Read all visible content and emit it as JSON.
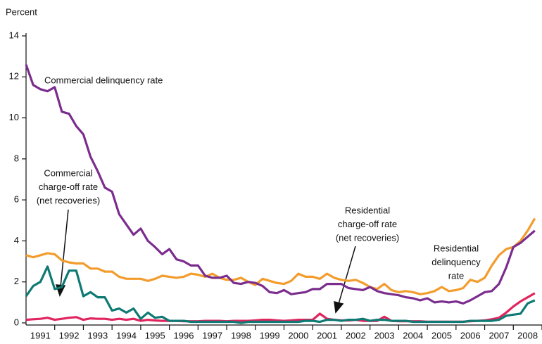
{
  "chart_data": {
    "type": "line",
    "ylabel": "Percent",
    "x": [
      1991,
      1991.25,
      1991.5,
      1991.75,
      1992,
      1992.25,
      1992.5,
      1992.75,
      1993,
      1993.25,
      1993.5,
      1993.75,
      1994,
      1994.25,
      1994.5,
      1994.75,
      1995,
      1995.25,
      1995.5,
      1995.75,
      1996,
      1996.25,
      1996.5,
      1996.75,
      1997,
      1997.25,
      1997.5,
      1997.75,
      1998,
      1998.25,
      1998.5,
      1998.75,
      1999,
      1999.25,
      1999.5,
      1999.75,
      2000,
      2000.25,
      2000.5,
      2000.75,
      2001,
      2001.25,
      2001.5,
      2001.75,
      2002,
      2002.25,
      2002.5,
      2002.75,
      2003,
      2003.25,
      2003.5,
      2003.75,
      2004,
      2004.25,
      2004.5,
      2004.75,
      2005,
      2005.25,
      2005.5,
      2005.75,
      2006,
      2006.25,
      2006.5,
      2006.75,
      2007,
      2007.25,
      2007.5,
      2007.75,
      2008,
      2008.25,
      2008.5,
      2008.75
    ],
    "xlim": [
      1991,
      2009
    ],
    "xticks": [
      {
        "value": 1991.5,
        "label": "1991"
      },
      {
        "value": 1992.5,
        "label": "1992"
      },
      {
        "value": 1993.5,
        "label": "1993"
      },
      {
        "value": 1994.5,
        "label": "1994"
      },
      {
        "value": 1995.5,
        "label": "1995"
      },
      {
        "value": 1996.5,
        "label": "1996"
      },
      {
        "value": 1997.5,
        "label": "1997"
      },
      {
        "value": 1998.5,
        "label": "1998"
      },
      {
        "value": 1999.5,
        "label": "1999"
      },
      {
        "value": 2000.5,
        "label": "2000"
      },
      {
        "value": 2001.5,
        "label": "2001"
      },
      {
        "value": 2002.5,
        "label": "2002"
      },
      {
        "value": 2003.5,
        "label": "2003"
      },
      {
        "value": 2004.5,
        "label": "2004"
      },
      {
        "value": 2005.5,
        "label": "2005"
      },
      {
        "value": 2006.5,
        "label": "2006"
      },
      {
        "value": 2007.5,
        "label": "2007"
      },
      {
        "value": 2008.5,
        "label": "2008"
      }
    ],
    "ylim": [
      0,
      14
    ],
    "yticks": [
      0,
      2,
      4,
      6,
      8,
      10,
      12,
      14
    ],
    "series": [
      {
        "name": "Commercial delinquency rate",
        "color": "#7b2d8e",
        "values": [
          12.6,
          11.6,
          11.4,
          11.3,
          11.5,
          10.3,
          10.2,
          9.6,
          9.2,
          8.1,
          7.4,
          6.6,
          6.4,
          5.3,
          4.8,
          4.3,
          4.6,
          4.0,
          3.7,
          3.35,
          3.6,
          3.1,
          3.0,
          2.8,
          2.8,
          2.3,
          2.2,
          2.2,
          2.3,
          1.95,
          1.9,
          2.0,
          1.95,
          1.8,
          1.5,
          1.45,
          1.6,
          1.4,
          1.45,
          1.5,
          1.65,
          1.65,
          1.9,
          1.9,
          1.9,
          1.7,
          1.65,
          1.6,
          1.75,
          1.55,
          1.45,
          1.4,
          1.35,
          1.25,
          1.2,
          1.1,
          1.2,
          1.0,
          1.05,
          1.0,
          1.05,
          0.95,
          1.1,
          1.3,
          1.5,
          1.55,
          1.9,
          2.7,
          3.7,
          3.9,
          4.2,
          4.5
        ]
      },
      {
        "name": "Residential delinquency rate",
        "color": "#f39c2c",
        "values": [
          3.3,
          3.2,
          3.3,
          3.4,
          3.35,
          3.05,
          2.95,
          2.9,
          2.9,
          2.65,
          2.65,
          2.5,
          2.5,
          2.25,
          2.15,
          2.15,
          2.15,
          2.05,
          2.15,
          2.3,
          2.25,
          2.2,
          2.25,
          2.4,
          2.35,
          2.25,
          2.4,
          2.2,
          2.1,
          2.1,
          2.2,
          2.0,
          1.85,
          2.15,
          2.05,
          1.95,
          1.9,
          2.05,
          2.4,
          2.25,
          2.25,
          2.15,
          2.4,
          2.2,
          2.1,
          2.05,
          2.1,
          1.95,
          1.75,
          1.65,
          1.9,
          1.6,
          1.5,
          1.55,
          1.5,
          1.4,
          1.45,
          1.55,
          1.75,
          1.55,
          1.6,
          1.7,
          2.1,
          2.0,
          2.2,
          2.8,
          3.3,
          3.6,
          3.7,
          4.0,
          4.5,
          5.1
        ]
      },
      {
        "name": "Commercial charge-off rate (net recoveries)",
        "color": "#0e7a73",
        "values": [
          1.3,
          1.8,
          2.0,
          2.75,
          1.65,
          1.75,
          2.55,
          2.55,
          1.3,
          1.5,
          1.25,
          1.25,
          0.6,
          0.7,
          0.5,
          0.7,
          0.2,
          0.5,
          0.25,
          0.3,
          0.1,
          0.1,
          0.1,
          0.05,
          0.05,
          0.05,
          0.05,
          0.05,
          0.05,
          0.05,
          0.0,
          0.05,
          0.05,
          0.05,
          0.05,
          0.05,
          0.05,
          0.05,
          0.05,
          0.1,
          0.1,
          0.05,
          0.15,
          0.15,
          0.1,
          0.15,
          0.15,
          0.2,
          0.1,
          0.15,
          0.15,
          0.1,
          0.1,
          0.1,
          0.05,
          0.05,
          0.05,
          0.05,
          0.05,
          0.05,
          0.05,
          0.05,
          0.1,
          0.1,
          0.1,
          0.1,
          0.15,
          0.35,
          0.4,
          0.45,
          0.95,
          1.1
        ]
      },
      {
        "name": "Residential charge-off rate (net recoveries)",
        "color": "#e0245e",
        "values": [
          0.15,
          0.18,
          0.2,
          0.25,
          0.15,
          0.2,
          0.25,
          0.28,
          0.15,
          0.22,
          0.2,
          0.2,
          0.15,
          0.2,
          0.15,
          0.2,
          0.1,
          0.15,
          0.12,
          0.1,
          0.1,
          0.1,
          0.08,
          0.08,
          0.08,
          0.1,
          0.1,
          0.1,
          0.08,
          0.1,
          0.1,
          0.1,
          0.12,
          0.15,
          0.15,
          0.12,
          0.1,
          0.12,
          0.15,
          0.15,
          0.15,
          0.45,
          0.2,
          0.15,
          0.12,
          0.12,
          0.15,
          0.1,
          0.1,
          0.1,
          0.3,
          0.1,
          0.08,
          0.08,
          0.08,
          0.08,
          0.06,
          0.06,
          0.06,
          0.06,
          0.06,
          0.06,
          0.08,
          0.1,
          0.12,
          0.18,
          0.25,
          0.5,
          0.8,
          1.05,
          1.25,
          1.45
        ]
      }
    ],
    "annotations": [
      {
        "lines": [
          "Commercial delinquency rate"
        ]
      },
      {
        "lines": [
          "Commercial",
          "charge-off rate",
          "(net recoveries)"
        ]
      },
      {
        "lines": [
          "Residential",
          "charge-off rate",
          "(net recoveries)"
        ]
      },
      {
        "lines": [
          "Residential",
          "delinquency",
          "rate"
        ]
      }
    ]
  }
}
